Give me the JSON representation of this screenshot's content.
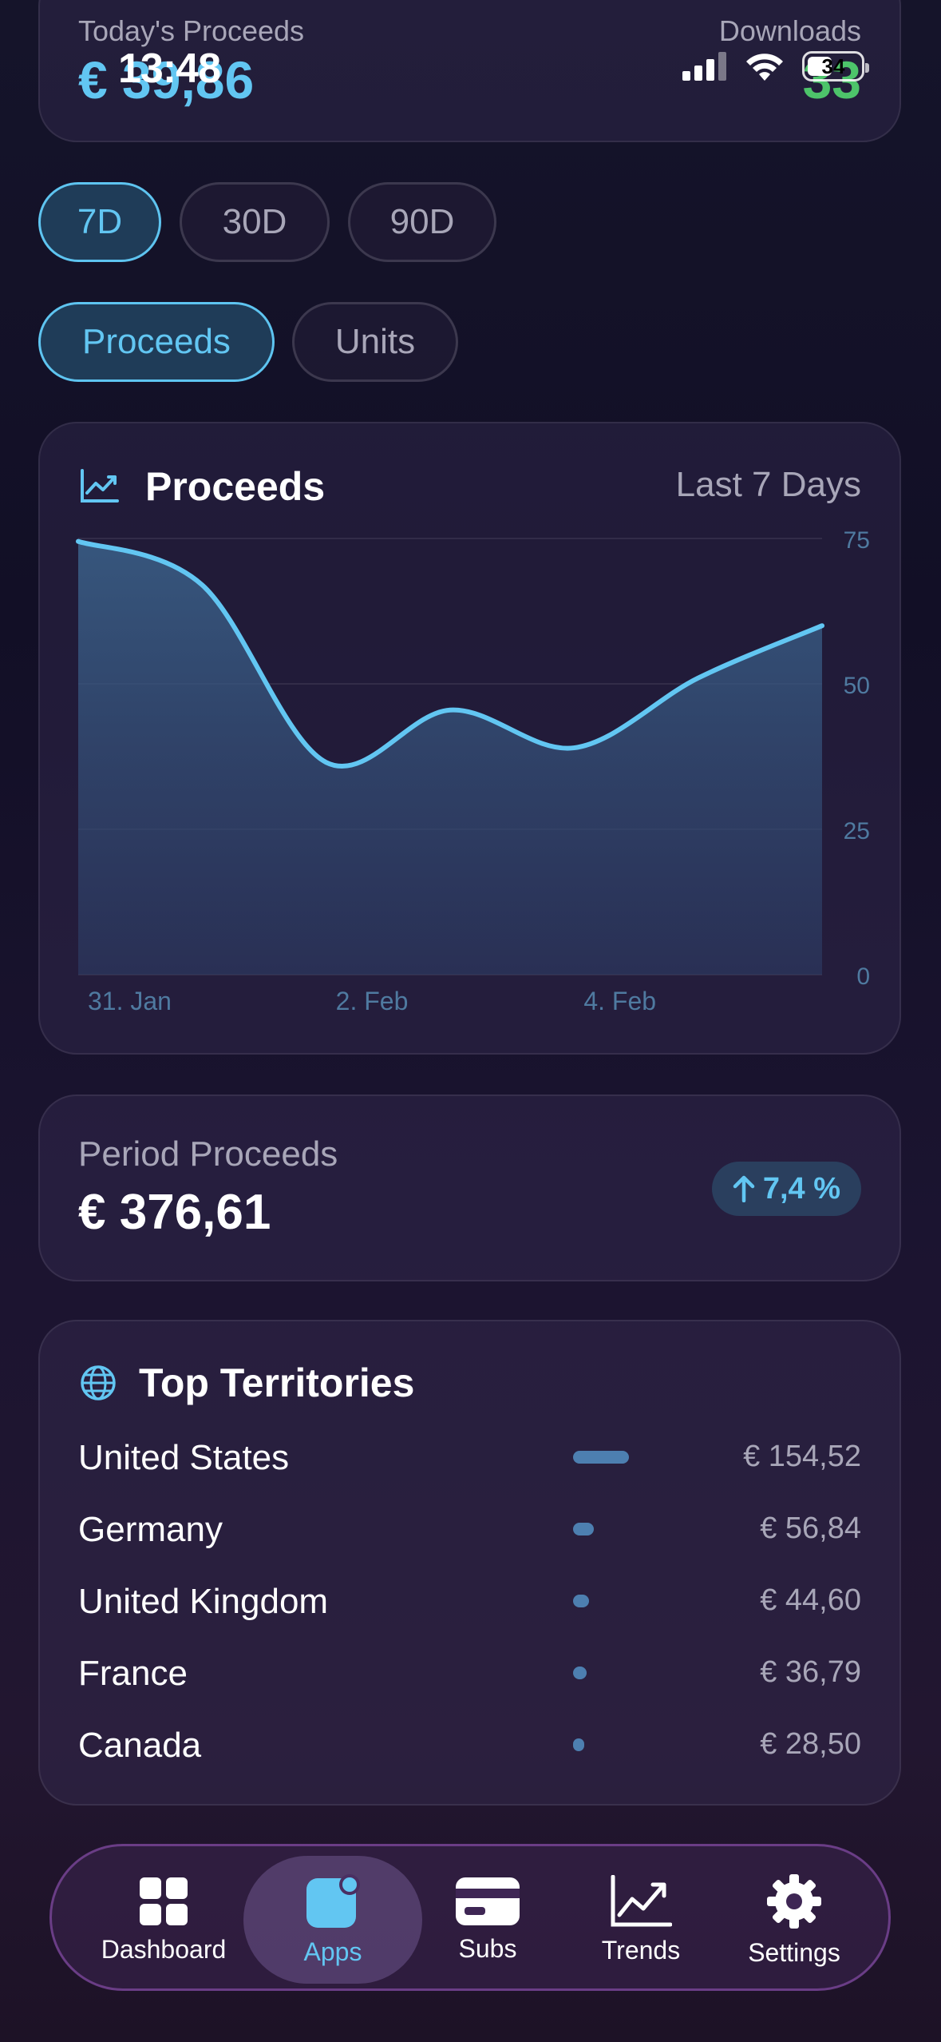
{
  "summary": {
    "left_label": "Today's Proceeds",
    "left_value": "€ 39,86",
    "right_label": "Downloads",
    "right_value": "33"
  },
  "status_bar": {
    "time": "13:48",
    "battery": "34"
  },
  "period_pills": [
    {
      "label": "7D",
      "active": true
    },
    {
      "label": "30D",
      "active": false
    },
    {
      "label": "90D",
      "active": false
    }
  ],
  "metric_pills": [
    {
      "label": "Proceeds",
      "active": true
    },
    {
      "label": "Units",
      "active": false
    }
  ],
  "chart_card": {
    "icon": "line-chart-icon",
    "title": "Proceeds",
    "subtitle": "Last 7 Days"
  },
  "chart_data": {
    "type": "area",
    "title": "Proceeds",
    "x": [
      "31. Jan",
      "1. Feb",
      "2. Feb",
      "3. Feb",
      "4. Feb",
      "5. Feb",
      "6. Feb"
    ],
    "x_tick_labels": [
      "31. Jan",
      "2. Feb",
      "4. Feb"
    ],
    "values": [
      74.5,
      67,
      36.5,
      45.5,
      39,
      51,
      60
    ],
    "ylim": [
      0,
      75
    ],
    "y_ticks": [
      0,
      25,
      50,
      75
    ],
    "grid": true,
    "color": "#62c6f2"
  },
  "period": {
    "label": "Period Proceeds",
    "value": "€ 376,61",
    "change": "7,4 %",
    "change_icon": "arrow-up-icon"
  },
  "territories": {
    "icon": "globe-icon",
    "title": "Top Territories",
    "rows": [
      {
        "name": "United States",
        "value": "€ 154,52",
        "amount": 154.52
      },
      {
        "name": "Germany",
        "value": "€ 56,84",
        "amount": 56.84
      },
      {
        "name": "United Kingdom",
        "value": "€ 44,60",
        "amount": 44.6
      },
      {
        "name": "France",
        "value": "€ 36,79",
        "amount": 36.79
      },
      {
        "name": "Canada",
        "value": "€ 28,50",
        "amount": 28.5
      }
    ]
  },
  "tabbar": [
    {
      "label": "Dashboard",
      "icon": "dashboard-grid-icon",
      "active": false
    },
    {
      "label": "Apps",
      "icon": "apps-icon",
      "active": true
    },
    {
      "label": "Subs",
      "icon": "card-icon",
      "active": false
    },
    {
      "label": "Trends",
      "icon": "trend-chart-icon",
      "active": false
    },
    {
      "label": "Settings",
      "icon": "gear-icon",
      "active": false
    }
  ],
  "colors": {
    "accent": "#62c6f2",
    "positive": "#4dc46a",
    "background": "#15142a"
  }
}
